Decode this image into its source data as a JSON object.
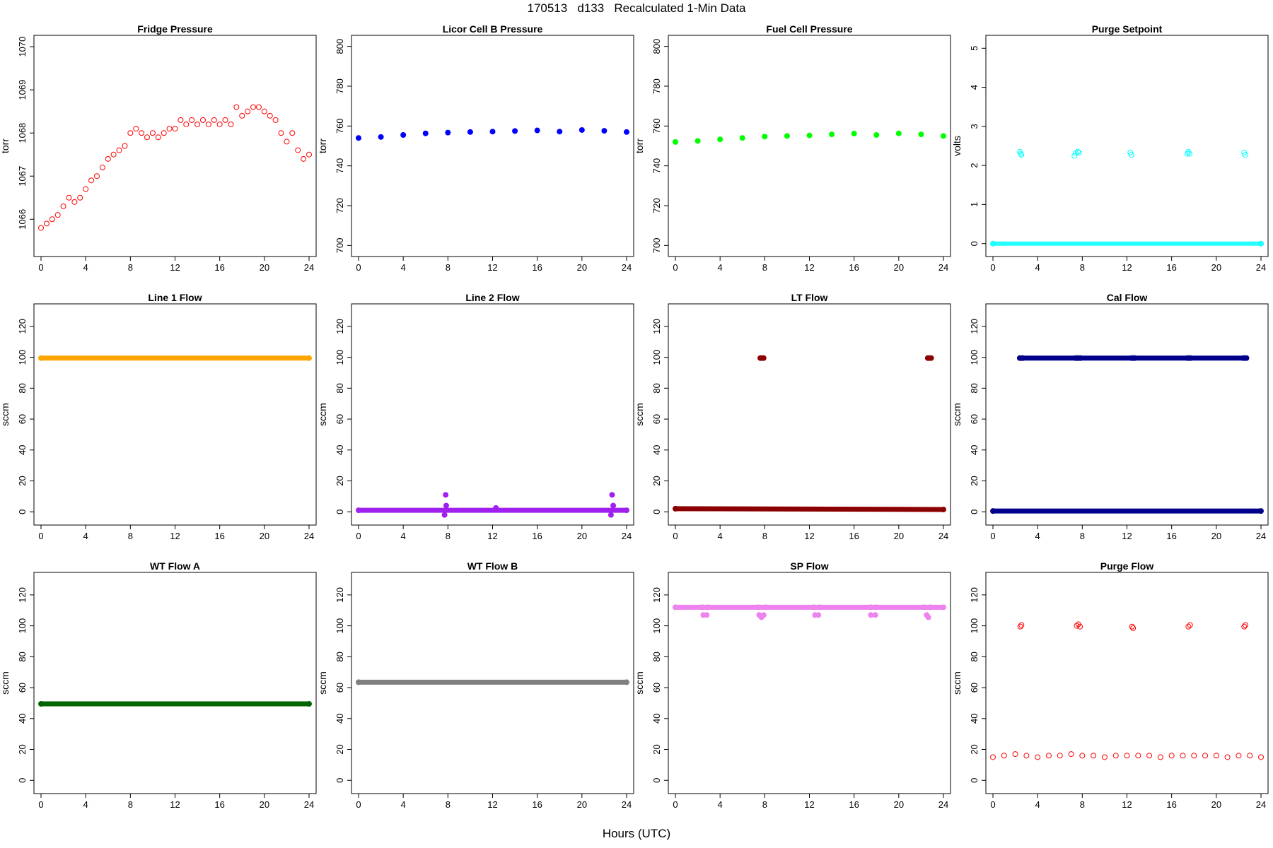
{
  "page": {
    "title": "170513   d133   Recalculated 1-Min Data",
    "xlabel": "Hours (UTC)"
  },
  "chart_data": [
    {
      "type": "scatter",
      "title": "Fridge Pressure",
      "ylabel": "torr",
      "xlim": [
        0,
        24
      ],
      "ylim": [
        1065.3,
        1070.1
      ],
      "xticks": [
        0,
        4,
        8,
        12,
        16,
        20,
        24
      ],
      "yticks": [
        1066,
        1067,
        1068,
        1069,
        1070
      ],
      "color": "#ff0000",
      "marker": "open",
      "grid": false,
      "series": [
        {
          "x": [
            0,
            0.5,
            1,
            1.5,
            2,
            2.5,
            3,
            3.5,
            4,
            4.5,
            5,
            5.5,
            6,
            6.5,
            7,
            7.5,
            8,
            8.5,
            9,
            9.5,
            10,
            10.5,
            11,
            11.5,
            12,
            12.5,
            13,
            13.5,
            14,
            14.5,
            15,
            15.5,
            16,
            16.5,
            17,
            17.5,
            18,
            18.5,
            19,
            19.5,
            20,
            20.5,
            21,
            21.5,
            22,
            22.5,
            23,
            23.5,
            24
          ],
          "y": [
            1065.8,
            1065.9,
            1066.0,
            1066.1,
            1066.3,
            1066.5,
            1066.4,
            1066.5,
            1066.7,
            1066.9,
            1067.0,
            1067.2,
            1067.4,
            1067.5,
            1067.6,
            1067.7,
            1068.0,
            1068.1,
            1068.0,
            1067.9,
            1068.0,
            1067.9,
            1068.0,
            1068.1,
            1068.1,
            1068.3,
            1068.2,
            1068.3,
            1068.2,
            1068.3,
            1068.2,
            1068.3,
            1068.2,
            1068.3,
            1068.2,
            1068.6,
            1068.4,
            1068.5,
            1068.6,
            1068.6,
            1068.5,
            1068.4,
            1068.3,
            1068.0,
            1067.8,
            1068.0,
            1067.6,
            1067.4,
            1067.5
          ]
        }
      ]
    },
    {
      "type": "scatter",
      "title": "Licor Cell B Pressure",
      "ylabel": "torr",
      "xlim": [
        0,
        24
      ],
      "ylim": [
        698,
        802
      ],
      "xticks": [
        0,
        4,
        8,
        12,
        16,
        20,
        24
      ],
      "yticks": [
        700,
        720,
        740,
        760,
        780,
        800
      ],
      "color": "#0000ff",
      "marker": "filled",
      "grid": false,
      "series": [
        {
          "x": [
            0,
            2,
            4,
            6,
            8,
            10,
            12,
            14,
            16,
            18,
            20,
            22,
            24
          ],
          "y": [
            754,
            754.5,
            755.5,
            756.3,
            756.7,
            757,
            757.2,
            757.5,
            757.8,
            757.2,
            758,
            757.6,
            757
          ]
        }
      ]
    },
    {
      "type": "scatter",
      "title": "Fuel Cell Pressure",
      "ylabel": "torr",
      "xlim": [
        0,
        24
      ],
      "ylim": [
        698,
        802
      ],
      "xticks": [
        0,
        4,
        8,
        12,
        16,
        20,
        24
      ],
      "yticks": [
        700,
        720,
        740,
        760,
        780,
        800
      ],
      "color": "#00ff00",
      "marker": "filled",
      "grid": false,
      "series": [
        {
          "x": [
            0,
            2,
            4,
            6,
            8,
            10,
            12,
            14,
            16,
            18,
            20,
            22,
            24
          ],
          "y": [
            752,
            752.5,
            753.3,
            754,
            754.7,
            755,
            755.3,
            755.8,
            756.2,
            755.5,
            756.3,
            755.8,
            755
          ]
        }
      ]
    },
    {
      "type": "scatter",
      "title": "Purge Setpoint",
      "ylabel": "volts",
      "xlim": [
        0,
        24
      ],
      "ylim": [
        -0.15,
        5.15
      ],
      "xticks": [
        0,
        4,
        8,
        12,
        16,
        20,
        24
      ],
      "yticks": [
        0,
        1,
        2,
        3,
        4,
        5
      ],
      "color": "#00ffff",
      "marker": "open",
      "grid": false,
      "series": [
        {
          "x": [
            0,
            24
          ],
          "y": [
            0,
            0
          ]
        },
        {
          "x": [
            2.4,
            2.5,
            2.55,
            7.3,
            7.4,
            7.6,
            7.7,
            12.3,
            12.4,
            17.4,
            17.5,
            17.6,
            22.5,
            22.6
          ],
          "y": [
            2.35,
            2.3,
            2.27,
            2.25,
            2.32,
            2.35,
            2.33,
            2.33,
            2.27,
            2.3,
            2.35,
            2.3,
            2.33,
            2.27
          ]
        }
      ]
    },
    {
      "type": "scatter",
      "title": "Line 1 Flow",
      "ylabel": "sccm",
      "xlim": [
        0,
        24
      ],
      "ylim": [
        -4,
        130
      ],
      "xticks": [
        0,
        4,
        8,
        12,
        16,
        20,
        24
      ],
      "yticks": [
        0,
        20,
        40,
        60,
        80,
        100,
        120
      ],
      "color": "#ffa500",
      "marker": "filled",
      "grid": false,
      "series": [
        {
          "x": [
            0,
            24
          ],
          "y": [
            99.5,
            99.5
          ]
        }
      ]
    },
    {
      "type": "scatter",
      "title": "Line 2 Flow",
      "ylabel": "sccm",
      "xlim": [
        0,
        24
      ],
      "ylim": [
        -4,
        130
      ],
      "xticks": [
        0,
        4,
        8,
        12,
        16,
        20,
        24
      ],
      "yticks": [
        0,
        20,
        40,
        60,
        80,
        100,
        120
      ],
      "color": "#a020f0",
      "marker": "filled",
      "grid": false,
      "series": [
        {
          "x": [
            0,
            24
          ],
          "y": [
            1,
            1
          ]
        },
        {
          "x": [
            7.7,
            7.8,
            7.85,
            12.3,
            22.6,
            22.7,
            22.8
          ],
          "y": [
            -2,
            11,
            4,
            2.5,
            -2,
            11,
            4
          ]
        }
      ]
    },
    {
      "type": "scatter",
      "title": "LT Flow",
      "ylabel": "sccm",
      "xlim": [
        0,
        24
      ],
      "ylim": [
        -4,
        130
      ],
      "xticks": [
        0,
        4,
        8,
        12,
        16,
        20,
        24
      ],
      "yticks": [
        0,
        20,
        40,
        60,
        80,
        100,
        120
      ],
      "color": "#8b0000",
      "marker": "filled",
      "grid": false,
      "series": [
        {
          "x": [
            0,
            24
          ],
          "y": [
            2,
            1.5
          ]
        },
        {
          "x": [
            7.6,
            7.75,
            7.9,
            22.6,
            22.75,
            22.9
          ],
          "y": [
            99.5,
            99.5,
            99.5,
            99.5,
            99.5,
            99.5
          ]
        }
      ]
    },
    {
      "type": "scatter",
      "title": "Cal Flow",
      "ylabel": "sccm",
      "xlim": [
        0,
        24
      ],
      "ylim": [
        -4,
        130
      ],
      "xticks": [
        0,
        4,
        8,
        12,
        16,
        20,
        24
      ],
      "yticks": [
        0,
        20,
        40,
        60,
        80,
        100,
        120
      ],
      "color": "#00008b",
      "marker": "filled",
      "grid": false,
      "series": [
        {
          "x": [
            0,
            24
          ],
          "y": [
            0.5,
            0.5
          ]
        },
        {
          "x": [
            2.4,
            2.55,
            2.7,
            7.4,
            7.55,
            7.7,
            7.85,
            12.4,
            12.55,
            12.7,
            17.4,
            17.55,
            17.7,
            22.4,
            22.55,
            22.7
          ],
          "y": [
            99.5,
            99.5,
            99.5,
            99.5,
            99.5,
            99.5,
            99.5,
            99.5,
            99.5,
            99.5,
            99.5,
            99.5,
            99.5,
            99.5,
            99.5,
            99.5
          ]
        }
      ]
    },
    {
      "type": "scatter",
      "title": "WT Flow A",
      "ylabel": "sccm",
      "xlim": [
        0,
        24
      ],
      "ylim": [
        -4,
        130
      ],
      "xticks": [
        0,
        4,
        8,
        12,
        16,
        20,
        24
      ],
      "yticks": [
        0,
        20,
        40,
        60,
        80,
        100,
        120
      ],
      "color": "#006400",
      "marker": "filled",
      "grid": false,
      "series": [
        {
          "x": [
            0,
            24
          ],
          "y": [
            49.5,
            49.5
          ]
        }
      ]
    },
    {
      "type": "scatter",
      "title": "WT Flow B",
      "ylabel": "sccm",
      "xlim": [
        0,
        24
      ],
      "ylim": [
        -4,
        130
      ],
      "xticks": [
        0,
        4,
        8,
        12,
        16,
        20,
        24
      ],
      "yticks": [
        0,
        20,
        40,
        60,
        80,
        100,
        120
      ],
      "color": "#808080",
      "marker": "filled",
      "grid": false,
      "series": [
        {
          "x": [
            0,
            24
          ],
          "y": [
            63.5,
            63.5
          ]
        }
      ]
    },
    {
      "type": "scatter",
      "title": "SP Flow",
      "ylabel": "sccm",
      "xlim": [
        0,
        24
      ],
      "ylim": [
        -4,
        130
      ],
      "xticks": [
        0,
        4,
        8,
        12,
        16,
        20,
        24
      ],
      "yticks": [
        0,
        20,
        40,
        60,
        80,
        100,
        120
      ],
      "color": "#ee82ee",
      "marker": "filled",
      "grid": false,
      "series": [
        {
          "x": [
            0,
            2.4,
            2.9,
            7.4,
            8.1,
            12.4,
            12.9,
            17.5,
            18.0,
            22.3,
            22.8,
            24
          ],
          "y": [
            112,
            112,
            112,
            112,
            112,
            112,
            112,
            112,
            112,
            112,
            112,
            112
          ]
        },
        {
          "x": [
            2.5,
            2.8,
            7.5,
            7.7,
            7.9,
            12.5,
            12.8,
            17.5,
            17.9,
            22.5,
            22.65
          ],
          "y": [
            107,
            107,
            107,
            105.5,
            107,
            107,
            107,
            107,
            107,
            107,
            105.5
          ]
        }
      ]
    },
    {
      "type": "scatter",
      "title": "Purge Flow",
      "ylabel": "sccm",
      "xlim": [
        0,
        24
      ],
      "ylim": [
        -4,
        130
      ],
      "xticks": [
        0,
        4,
        8,
        12,
        16,
        20,
        24
      ],
      "yticks": [
        0,
        20,
        40,
        60,
        80,
        100,
        120
      ],
      "color": "#ff0000",
      "marker": "open",
      "grid": false,
      "series": [
        {
          "x": [
            0,
            1,
            2,
            3,
            4,
            5,
            6,
            7,
            8,
            9,
            10,
            11,
            12,
            13,
            14,
            15,
            16,
            17,
            18,
            19,
            20,
            21,
            22,
            23,
            24
          ],
          "y": [
            15,
            16,
            17,
            16,
            15,
            16,
            16,
            17,
            16,
            16,
            15,
            16,
            16,
            16,
            16,
            15,
            16,
            16,
            16,
            16,
            16,
            15,
            16,
            16,
            15
          ]
        },
        {
          "x": [
            2.45,
            2.55,
            7.5,
            7.65,
            7.8,
            12.45,
            12.55,
            17.5,
            17.65,
            22.5,
            22.6
          ],
          "y": [
            99.5,
            100.5,
            100,
            101,
            99.5,
            99.5,
            98.5,
            99.5,
            100.5,
            99.5,
            100.5
          ]
        }
      ]
    }
  ]
}
